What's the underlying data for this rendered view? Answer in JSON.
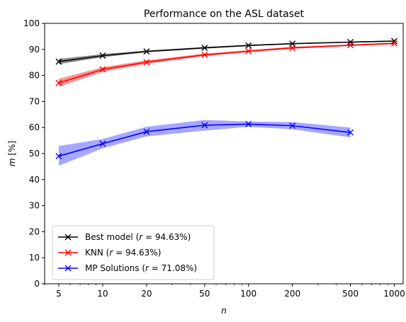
{
  "chart_data": {
    "type": "line",
    "title": "Performance on the ASL dataset",
    "xlabel": "n",
    "ylabel": "m [%]",
    "xscale": "log",
    "xlim": [
      4,
      1150
    ],
    "ylim": [
      0,
      100
    ],
    "x_ticks": [
      5,
      10,
      20,
      50,
      100,
      200,
      500,
      1000
    ],
    "x_tick_labels": [
      "5",
      "10",
      "20",
      "50",
      "100",
      "200",
      "500",
      "1000"
    ],
    "y_ticks": [
      0,
      10,
      20,
      30,
      40,
      50,
      60,
      70,
      80,
      90,
      100
    ],
    "y_tick_labels": [
      "0",
      "10",
      "20",
      "30",
      "40",
      "50",
      "60",
      "70",
      "80",
      "90",
      "100"
    ],
    "grid": false,
    "legend_position": "lower-left",
    "series": [
      {
        "name": "Best model",
        "legend_label": "Best model (r = 94.63%)",
        "color": "#000000",
        "band_color": "#808080",
        "marker": "x",
        "x": [
          5,
          10,
          20,
          50,
          100,
          200,
          500,
          1000
        ],
        "y": [
          85.3,
          87.6,
          89.2,
          90.6,
          91.5,
          92.2,
          92.8,
          93.2
        ],
        "y_lower": [
          84.3,
          87.0,
          88.9,
          90.3,
          91.3,
          92.0,
          92.6,
          93.0
        ],
        "y_upper": [
          86.4,
          88.2,
          89.6,
          90.9,
          91.8,
          92.4,
          93.0,
          93.4
        ]
      },
      {
        "name": "KNN",
        "legend_label": "KNN (r = 94.63%)",
        "color": "#ff0000",
        "band_color": "#ff8080",
        "marker": "x",
        "x": [
          5,
          10,
          20,
          50,
          100,
          200,
          500,
          1000
        ],
        "y": [
          77.1,
          82.3,
          85.1,
          87.9,
          89.3,
          90.6,
          91.6,
          92.3
        ],
        "y_lower": [
          75.6,
          81.4,
          84.4,
          87.4,
          88.9,
          90.2,
          91.3,
          92.0
        ],
        "y_upper": [
          78.7,
          83.2,
          85.8,
          88.4,
          89.7,
          91.0,
          91.9,
          92.6
        ]
      },
      {
        "name": "MP Solutions",
        "legend_label": "MP Solutions (r = 71.08%)",
        "color": "#0000ff",
        "band_color": "#9898ff",
        "marker": "x",
        "x": [
          5,
          10,
          20,
          50,
          100,
          200,
          500
        ],
        "y": [
          49.0,
          53.8,
          58.4,
          60.9,
          61.3,
          60.7,
          58.1
        ],
        "y_lower": [
          45.3,
          52.0,
          56.6,
          58.8,
          60.3,
          59.3,
          56.2
        ],
        "y_upper": [
          52.9,
          55.6,
          60.3,
          62.9,
          62.3,
          62.1,
          60.0
        ]
      }
    ]
  },
  "legend_parts": [
    {
      "prefix": "Best model (",
      "var": "r",
      "value": " = 94.63%)"
    },
    {
      "prefix": "KNN (",
      "var": "r",
      "value": " = 94.63%)"
    },
    {
      "prefix": "MP Solutions (",
      "var": "r",
      "value": " = 71.08%)"
    }
  ]
}
